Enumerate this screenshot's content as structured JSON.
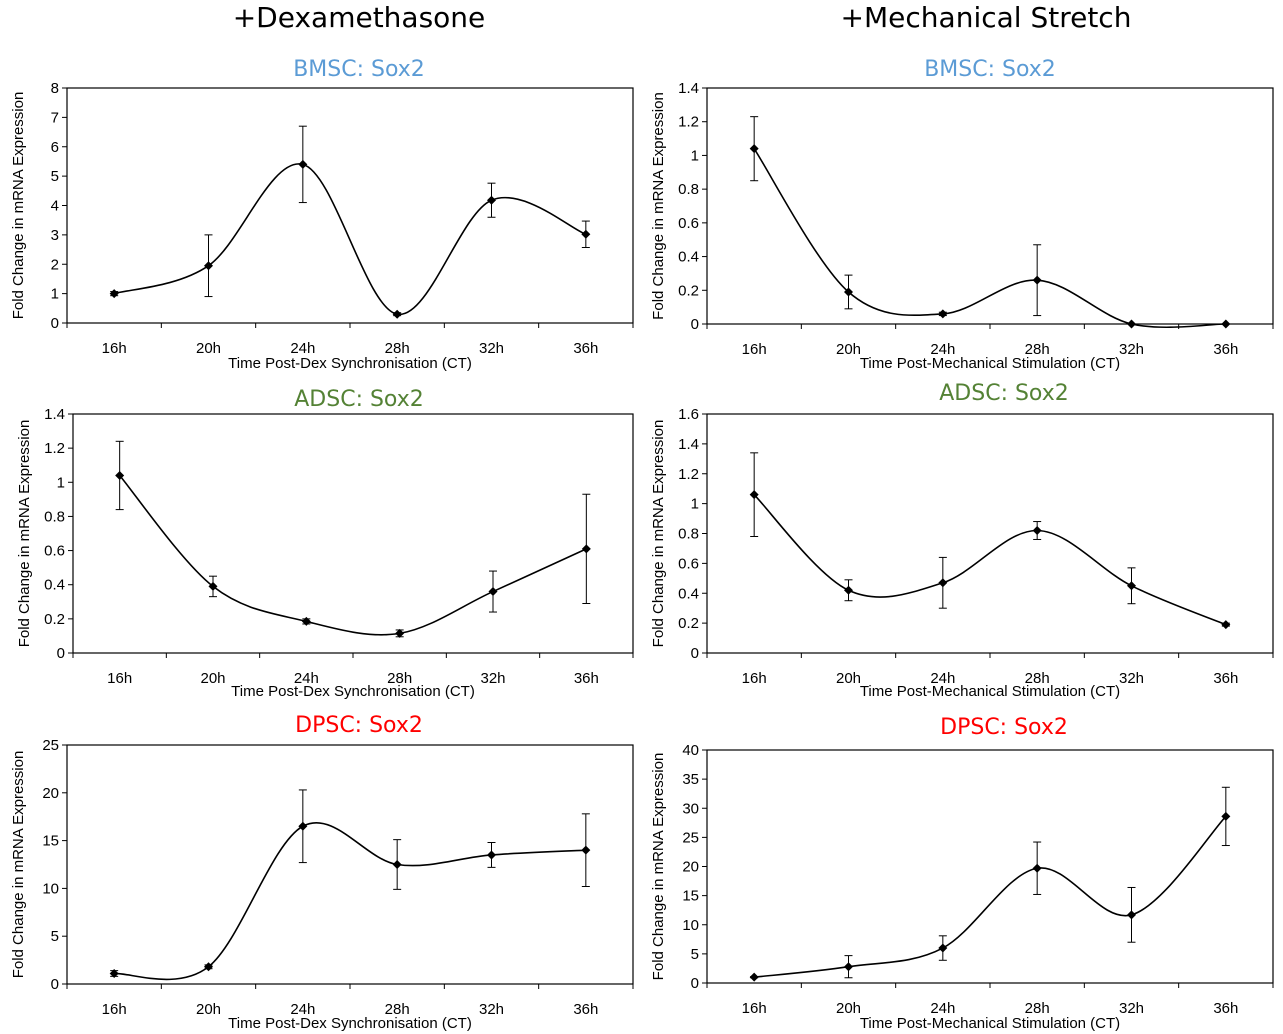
{
  "headers": {
    "left": "+Dexamethasone",
    "right": "+Mechanical Stretch"
  },
  "colors": {
    "BMSC": "#5b9bd5",
    "ADSC": "#548235",
    "DPSC": "#ff0000",
    "line": "#000000"
  },
  "chart_data": [
    {
      "type": "line",
      "title": "BMSC: Sox2",
      "title_color": "#5b9bd5",
      "xlabel": "Time Post-Dex Synchronisation (CT)",
      "ylabel": "Fold Change in mRNA Expression",
      "categories": [
        "16h",
        "20h",
        "24h",
        "28h",
        "32h",
        "36h"
      ],
      "series": [
        {
          "values": [
            1.0,
            1.95,
            5.4,
            0.3,
            4.18,
            3.02
          ],
          "errors": [
            0.07,
            1.05,
            1.3,
            0.05,
            0.58,
            0.45
          ]
        }
      ],
      "ylim": [
        0,
        8
      ],
      "yticks": [
        0,
        1,
        2,
        3,
        4,
        5,
        6,
        7,
        8
      ],
      "ytick_labels": [
        "0",
        "1",
        "2",
        "3",
        "4",
        "5",
        "6",
        "7",
        "8"
      ],
      "grid": false,
      "smooth": true
    },
    {
      "type": "line",
      "title": "BMSC: Sox2",
      "title_color": "#5b9bd5",
      "xlabel": "Time Post-Mechanical Stimulation (CT)",
      "ylabel": "Fold Change in mRNA Expression",
      "categories": [
        "16h",
        "20h",
        "24h",
        "28h",
        "32h",
        "36h"
      ],
      "series": [
        {
          "values": [
            1.04,
            0.19,
            0.06,
            0.26,
            0.0,
            0.0
          ],
          "errors": [
            0.19,
            0.1,
            0.01,
            0.21,
            0.0,
            0.0
          ]
        }
      ],
      "ylim": [
        0,
        1.4
      ],
      "yticks": [
        0,
        0.2,
        0.4,
        0.6,
        0.8,
        1.0,
        1.2,
        1.4
      ],
      "ytick_labels": [
        "0",
        "0.2",
        "0.4",
        "0.6",
        "0.8",
        "1",
        "1.2",
        "1.4"
      ],
      "grid": false,
      "smooth": true
    },
    {
      "type": "line",
      "title": "ADSC: Sox2",
      "title_color": "#548235",
      "xlabel": "Time Post-Dex Synchronisation (CT)",
      "ylabel": "Fold Change in mRNA Expression",
      "categories": [
        "16h",
        "20h",
        "24h",
        "28h",
        "32h",
        "36h"
      ],
      "series": [
        {
          "values": [
            1.04,
            0.39,
            0.185,
            0.115,
            0.36,
            0.61
          ],
          "errors": [
            0.2,
            0.06,
            0.015,
            0.02,
            0.12,
            0.32
          ]
        }
      ],
      "ylim": [
        0,
        1.4
      ],
      "yticks": [
        0,
        0.2,
        0.4,
        0.6,
        0.8,
        1.0,
        1.2,
        1.4
      ],
      "ytick_labels": [
        "0",
        "0.2",
        "0.4",
        "0.6",
        "0.8",
        "1",
        "1.2",
        "1.4"
      ],
      "grid": false,
      "smooth": true
    },
    {
      "type": "line",
      "title": "ADSC: Sox2",
      "title_color": "#548235",
      "xlabel": "Time Post-Mechanical Stimulation (CT)",
      "ylabel": "Fold Change in mRNA Expression",
      "categories": [
        "16h",
        "20h",
        "24h",
        "28h",
        "32h",
        "36h"
      ],
      "series": [
        {
          "values": [
            1.06,
            0.42,
            0.47,
            0.82,
            0.45,
            0.19
          ],
          "errors": [
            0.28,
            0.07,
            0.17,
            0.06,
            0.12,
            0.01
          ]
        }
      ],
      "ylim": [
        0,
        1.6
      ],
      "yticks": [
        0,
        0.2,
        0.4,
        0.6,
        0.8,
        1.0,
        1.2,
        1.4,
        1.6
      ],
      "ytick_labels": [
        "0",
        "0.2",
        "0.4",
        "0.6",
        "0.8",
        "1",
        "1.2",
        "1.4",
        "1.6"
      ],
      "grid": false,
      "smooth": true
    },
    {
      "type": "line",
      "title": "DPSC: Sox2",
      "title_color": "#ff0000",
      "xlabel": "Time Post-Dex Synchronisation (CT)",
      "ylabel": "Fold Change in mRNA Expression",
      "categories": [
        "16h",
        "20h",
        "24h",
        "28h",
        "32h",
        "36h"
      ],
      "series": [
        {
          "values": [
            1.1,
            1.8,
            16.5,
            12.5,
            13.5,
            14.0
          ],
          "errors": [
            0.3,
            0.2,
            3.8,
            2.6,
            1.3,
            3.8
          ]
        }
      ],
      "ylim": [
        0,
        25
      ],
      "yticks": [
        0,
        5,
        10,
        15,
        20,
        25
      ],
      "ytick_labels": [
        "0",
        "5",
        "10",
        "15",
        "20",
        "25"
      ],
      "grid": false,
      "smooth": true
    },
    {
      "type": "line",
      "title": "DPSC: Sox2",
      "title_color": "#ff0000",
      "xlabel": "Time Post-Mechanical Stimulation (CT)",
      "ylabel": "Fold Change in mRNA Expression",
      "categories": [
        "16h",
        "20h",
        "24h",
        "28h",
        "32h",
        "36h"
      ],
      "series": [
        {
          "values": [
            1.0,
            2.8,
            6.0,
            19.7,
            11.7,
            28.6
          ],
          "errors": [
            0.1,
            1.9,
            2.1,
            4.5,
            4.7,
            5.0
          ]
        }
      ],
      "ylim": [
        0,
        40
      ],
      "yticks": [
        0,
        5,
        10,
        15,
        20,
        25,
        30,
        35,
        40
      ],
      "ytick_labels": [
        "0",
        "5",
        "10",
        "15",
        "20",
        "25",
        "30",
        "35",
        "40"
      ],
      "grid": false,
      "smooth": true
    }
  ]
}
